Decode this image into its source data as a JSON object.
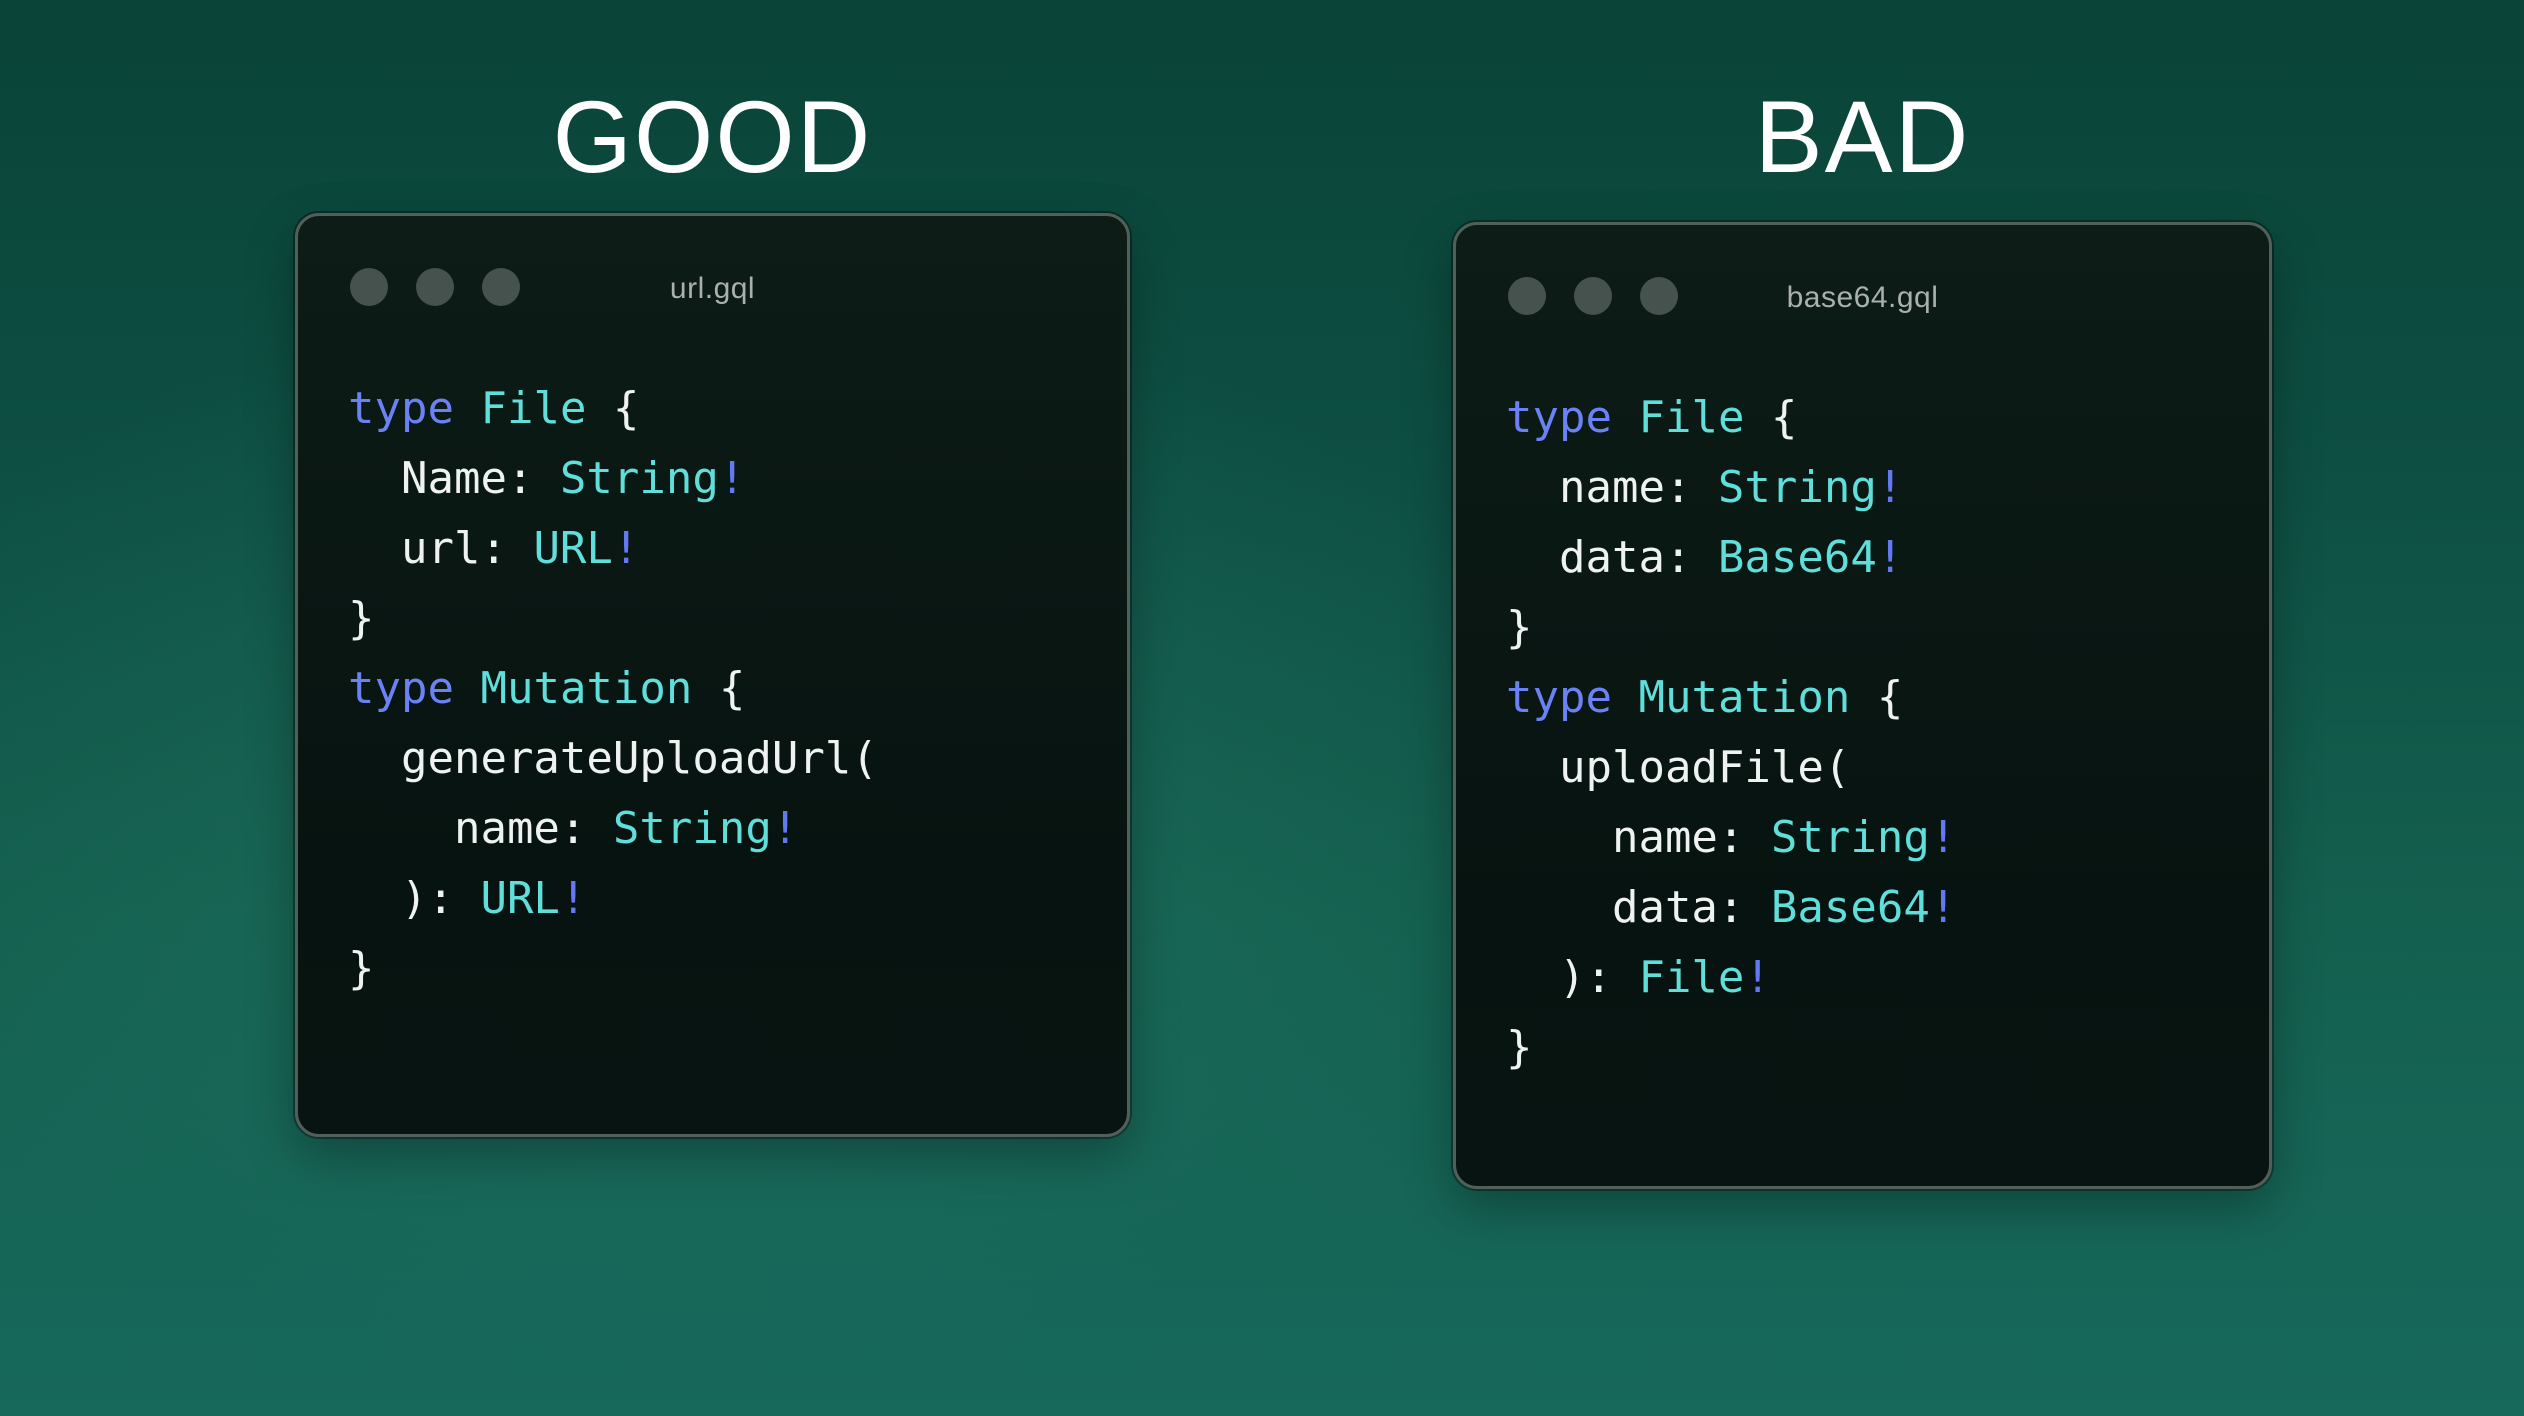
{
  "colors": {
    "background_top": "#0a4337",
    "background_bottom": "#17695c",
    "window_background": "#081411",
    "window_border": "#515e59",
    "traffic_dot": "#46524d",
    "filename_text": "#a9b0ad",
    "heading_text": "#ffffff",
    "code_keyword": "#6b82f6",
    "code_type": "#5fdeda",
    "code_plain": "#eef2f0",
    "code_bang": "#6478f2"
  },
  "icons": {
    "window_controls": "three-gray-circle-dots"
  },
  "panels": [
    {
      "heading": "GOOD",
      "window": {
        "filename": "url.gql",
        "code": [
          [
            {
              "t": "type",
              "c": "keyword"
            },
            {
              "t": " ",
              "c": "plain"
            },
            {
              "t": "File",
              "c": "type"
            },
            {
              "t": " {",
              "c": "plain"
            }
          ],
          [
            {
              "t": "  Name: ",
              "c": "plain"
            },
            {
              "t": "String",
              "c": "type"
            },
            {
              "t": "!",
              "c": "bang"
            }
          ],
          [
            {
              "t": "  url: ",
              "c": "plain"
            },
            {
              "t": "URL",
              "c": "type"
            },
            {
              "t": "!",
              "c": "bang"
            }
          ],
          [
            {
              "t": "}",
              "c": "plain"
            }
          ],
          [
            {
              "t": "type",
              "c": "keyword"
            },
            {
              "t": " ",
              "c": "plain"
            },
            {
              "t": "Mutation",
              "c": "type"
            },
            {
              "t": " {",
              "c": "plain"
            }
          ],
          [
            {
              "t": "  generateUploadUrl(",
              "c": "plain"
            }
          ],
          [
            {
              "t": "    name: ",
              "c": "plain"
            },
            {
              "t": "String",
              "c": "type"
            },
            {
              "t": "!",
              "c": "bang"
            }
          ],
          [
            {
              "t": "  ): ",
              "c": "plain"
            },
            {
              "t": "URL",
              "c": "type"
            },
            {
              "t": "!",
              "c": "bang"
            }
          ],
          [
            {
              "t": "}",
              "c": "plain"
            }
          ]
        ]
      }
    },
    {
      "heading": "BAD",
      "window": {
        "filename": "base64.gql",
        "code": [
          [
            {
              "t": "type",
              "c": "keyword"
            },
            {
              "t": " ",
              "c": "plain"
            },
            {
              "t": "File",
              "c": "type"
            },
            {
              "t": " {",
              "c": "plain"
            }
          ],
          [
            {
              "t": "  name: ",
              "c": "plain"
            },
            {
              "t": "String",
              "c": "type"
            },
            {
              "t": "!",
              "c": "bang"
            }
          ],
          [
            {
              "t": "  data: ",
              "c": "plain"
            },
            {
              "t": "Base64",
              "c": "type"
            },
            {
              "t": "!",
              "c": "bang"
            }
          ],
          [
            {
              "t": "}",
              "c": "plain"
            }
          ],
          [
            {
              "t": "type",
              "c": "keyword"
            },
            {
              "t": " ",
              "c": "plain"
            },
            {
              "t": "Mutation",
              "c": "type"
            },
            {
              "t": " {",
              "c": "plain"
            }
          ],
          [
            {
              "t": "  uploadFile(",
              "c": "plain"
            }
          ],
          [
            {
              "t": "    name: ",
              "c": "plain"
            },
            {
              "t": "String",
              "c": "type"
            },
            {
              "t": "!",
              "c": "bang"
            }
          ],
          [
            {
              "t": "    data: ",
              "c": "plain"
            },
            {
              "t": "Base64",
              "c": "type"
            },
            {
              "t": "!",
              "c": "bang"
            }
          ],
          [
            {
              "t": "  ): ",
              "c": "plain"
            },
            {
              "t": "File",
              "c": "type"
            },
            {
              "t": "!",
              "c": "bang"
            }
          ],
          [
            {
              "t": "}",
              "c": "plain"
            }
          ]
        ]
      }
    }
  ]
}
